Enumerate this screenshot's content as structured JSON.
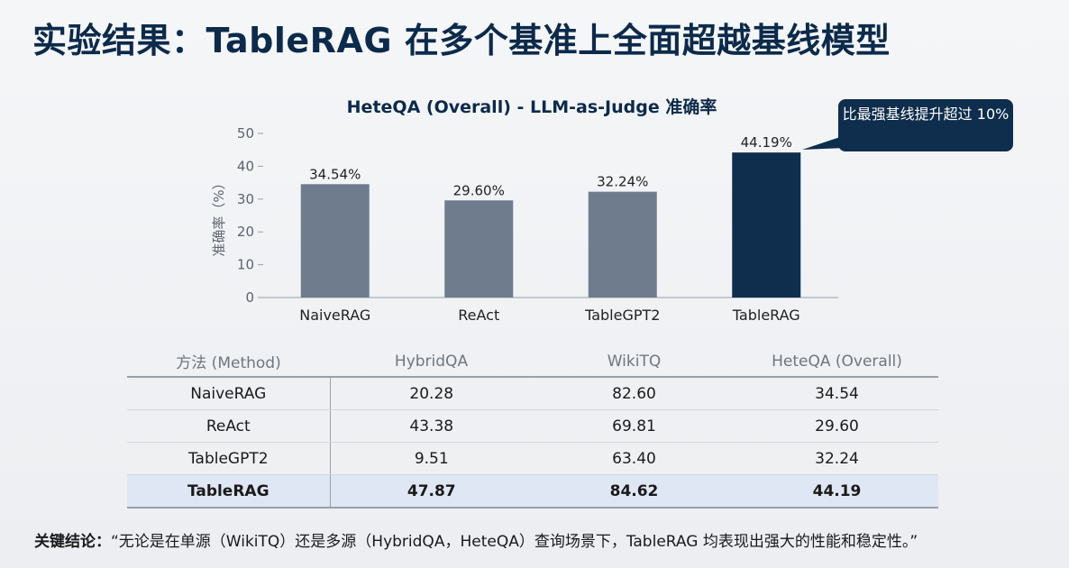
{
  "slide": {
    "title": "实验结果：TableRAG 在多个基准上全面超越基线模型",
    "callout": "比最强基线提升超过 10%",
    "conclusion_label": "关键结论：",
    "conclusion_text": "“无论是在单源（WikiTQ）还是多源（HybridQA，HeteQA）查询场景下，TableRAG 均表现出强大的性能和稳定性。”"
  },
  "chart_data": {
    "type": "bar",
    "title": "HeteQA (Overall) - LLM-as-Judge 准确率",
    "ylabel": "准确率（%）",
    "xlabel": "",
    "ylim": [
      0,
      50
    ],
    "yticks": [
      0,
      10,
      20,
      30,
      40,
      50
    ],
    "categories": [
      "NaiveRAG",
      "ReAct",
      "TableGPT2",
      "TableRAG"
    ],
    "values": [
      34.54,
      29.6,
      32.24,
      44.19
    ],
    "data_labels": [
      "34.54%",
      "29.60%",
      "32.24%",
      "44.19%"
    ],
    "colors": [
      "#6f7c8e",
      "#6f7c8e",
      "#6f7c8e",
      "#0f2d4c"
    ],
    "grid": false
  },
  "table": {
    "headers": [
      "方法 (Method)",
      "HybridQA",
      "WikiTQ",
      "HeteQA (Overall)"
    ],
    "rows": [
      [
        "NaiveRAG",
        "20.28",
        "82.60",
        "34.54"
      ],
      [
        "ReAct",
        "43.38",
        "69.81",
        "29.60"
      ],
      [
        "TableGPT2",
        "9.51",
        "63.40",
        "32.24"
      ],
      [
        "TableRAG",
        "47.87",
        "84.62",
        "44.19"
      ]
    ],
    "highlight_row": 3
  }
}
